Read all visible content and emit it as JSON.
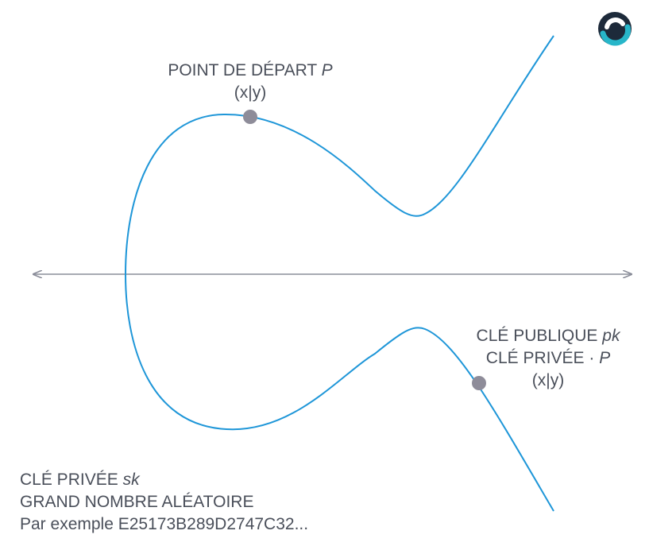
{
  "colors": {
    "curve": "#1e96d8",
    "axis": "#8a8d99",
    "point": "#8e8c99",
    "text": "#4a4f5a",
    "logo_dark": "#1d2a3a",
    "logo_teal": "#27b6c9"
  },
  "icons": {
    "logo": "brand-logo-icon"
  },
  "start_point": {
    "title": "POINT DE DÉPART",
    "symbol": "P",
    "coords": "(x|y)"
  },
  "public_key": {
    "title": "CLÉ PUBLIQUE",
    "symbol": "pk",
    "formula_text": "CLÉ PRIVÉE ·",
    "formula_symbol": "P",
    "coords": "(x|y)"
  },
  "private_key": {
    "title": "CLÉ PRIVÉE",
    "symbol": "sk",
    "description": "GRAND NOMBRE ALÉATOIRE",
    "example": "Par exemple E25173B289D2747C32..."
  }
}
